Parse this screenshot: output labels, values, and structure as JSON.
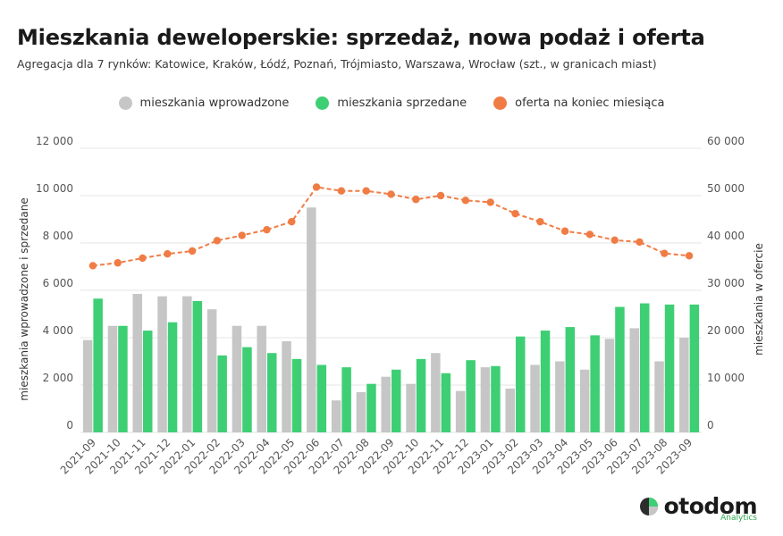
{
  "title": "Mieszkania deweloperskie: sprzedaż, nowa podaż i oferta",
  "subtitle": "Agregacja dla 7 rynków: Katowice, Kraków, Łódź, Poznań, Trójmiasto, Warszawa, Wrocław (szt., w granicach miast)",
  "logo": {
    "name": "otodom",
    "tagline": "Analytics"
  },
  "colors": {
    "introduced": "#c6c6c6",
    "sold": "#3ecf74",
    "offer": "#f07c45",
    "grid": "#e4e4e4",
    "axis_text": "#555555"
  },
  "chart_data": {
    "type": "bar",
    "legend": [
      "mieszkania wprowadzone",
      "mieszkania sprzedane",
      "oferta na koniec miesiąca"
    ],
    "legend_position": "top-center",
    "grid": true,
    "ylabel": "mieszkania wprowadzone i sprzedane",
    "y2label": "mieszkania w ofercie",
    "ylim": [
      0,
      12000
    ],
    "y2lim": [
      0,
      60000
    ],
    "yticks": [
      "0",
      "2 000",
      "4 000",
      "6 000",
      "8 000",
      "10 000",
      "12 000"
    ],
    "y2ticks": [
      "0",
      "10 000",
      "20 000",
      "30 000",
      "40 000",
      "50 000",
      "60 000"
    ],
    "categories": [
      "2021-09",
      "2021-10",
      "2021-11",
      "2021-12",
      "2022-01",
      "2022-02",
      "2022-03",
      "2022-04",
      "2022-05",
      "2022-06",
      "2022-07",
      "2022-08",
      "2022-09",
      "2022-10",
      "2022-11",
      "2022-12",
      "2023-01",
      "2023-02",
      "2023-03",
      "2023-04",
      "2023-05",
      "2023-06",
      "2023-07",
      "2023-08",
      "2023-09"
    ],
    "series": [
      {
        "name": "mieszkania wprowadzone",
        "axis": "left",
        "kind": "bar",
        "values": [
          3900,
          4500,
          5850,
          5750,
          5750,
          5200,
          4500,
          4500,
          3850,
          9500,
          1350,
          1700,
          2350,
          2050,
          3350,
          1750,
          2750,
          1850,
          2850,
          3000,
          2650,
          3950,
          4400,
          3000,
          4000
        ]
      },
      {
        "name": "mieszkania sprzedane",
        "axis": "left",
        "kind": "bar",
        "values": [
          5650,
          4500,
          4300,
          4650,
          5550,
          3250,
          3600,
          3350,
          3100,
          2850,
          2750,
          2050,
          2650,
          3100,
          2500,
          3050,
          2800,
          4050,
          4300,
          4450,
          4100,
          5300,
          5450,
          5400,
          5400
        ]
      },
      {
        "name": "oferta na koniec miesiąca",
        "axis": "right",
        "kind": "line",
        "values": [
          35200,
          35800,
          36800,
          37700,
          38300,
          40500,
          41600,
          42800,
          44500,
          51800,
          51000,
          51000,
          50300,
          49200,
          50000,
          49000,
          48600,
          46200,
          44500,
          42500,
          41800,
          40600,
          40200,
          37800,
          37300
        ]
      }
    ]
  }
}
